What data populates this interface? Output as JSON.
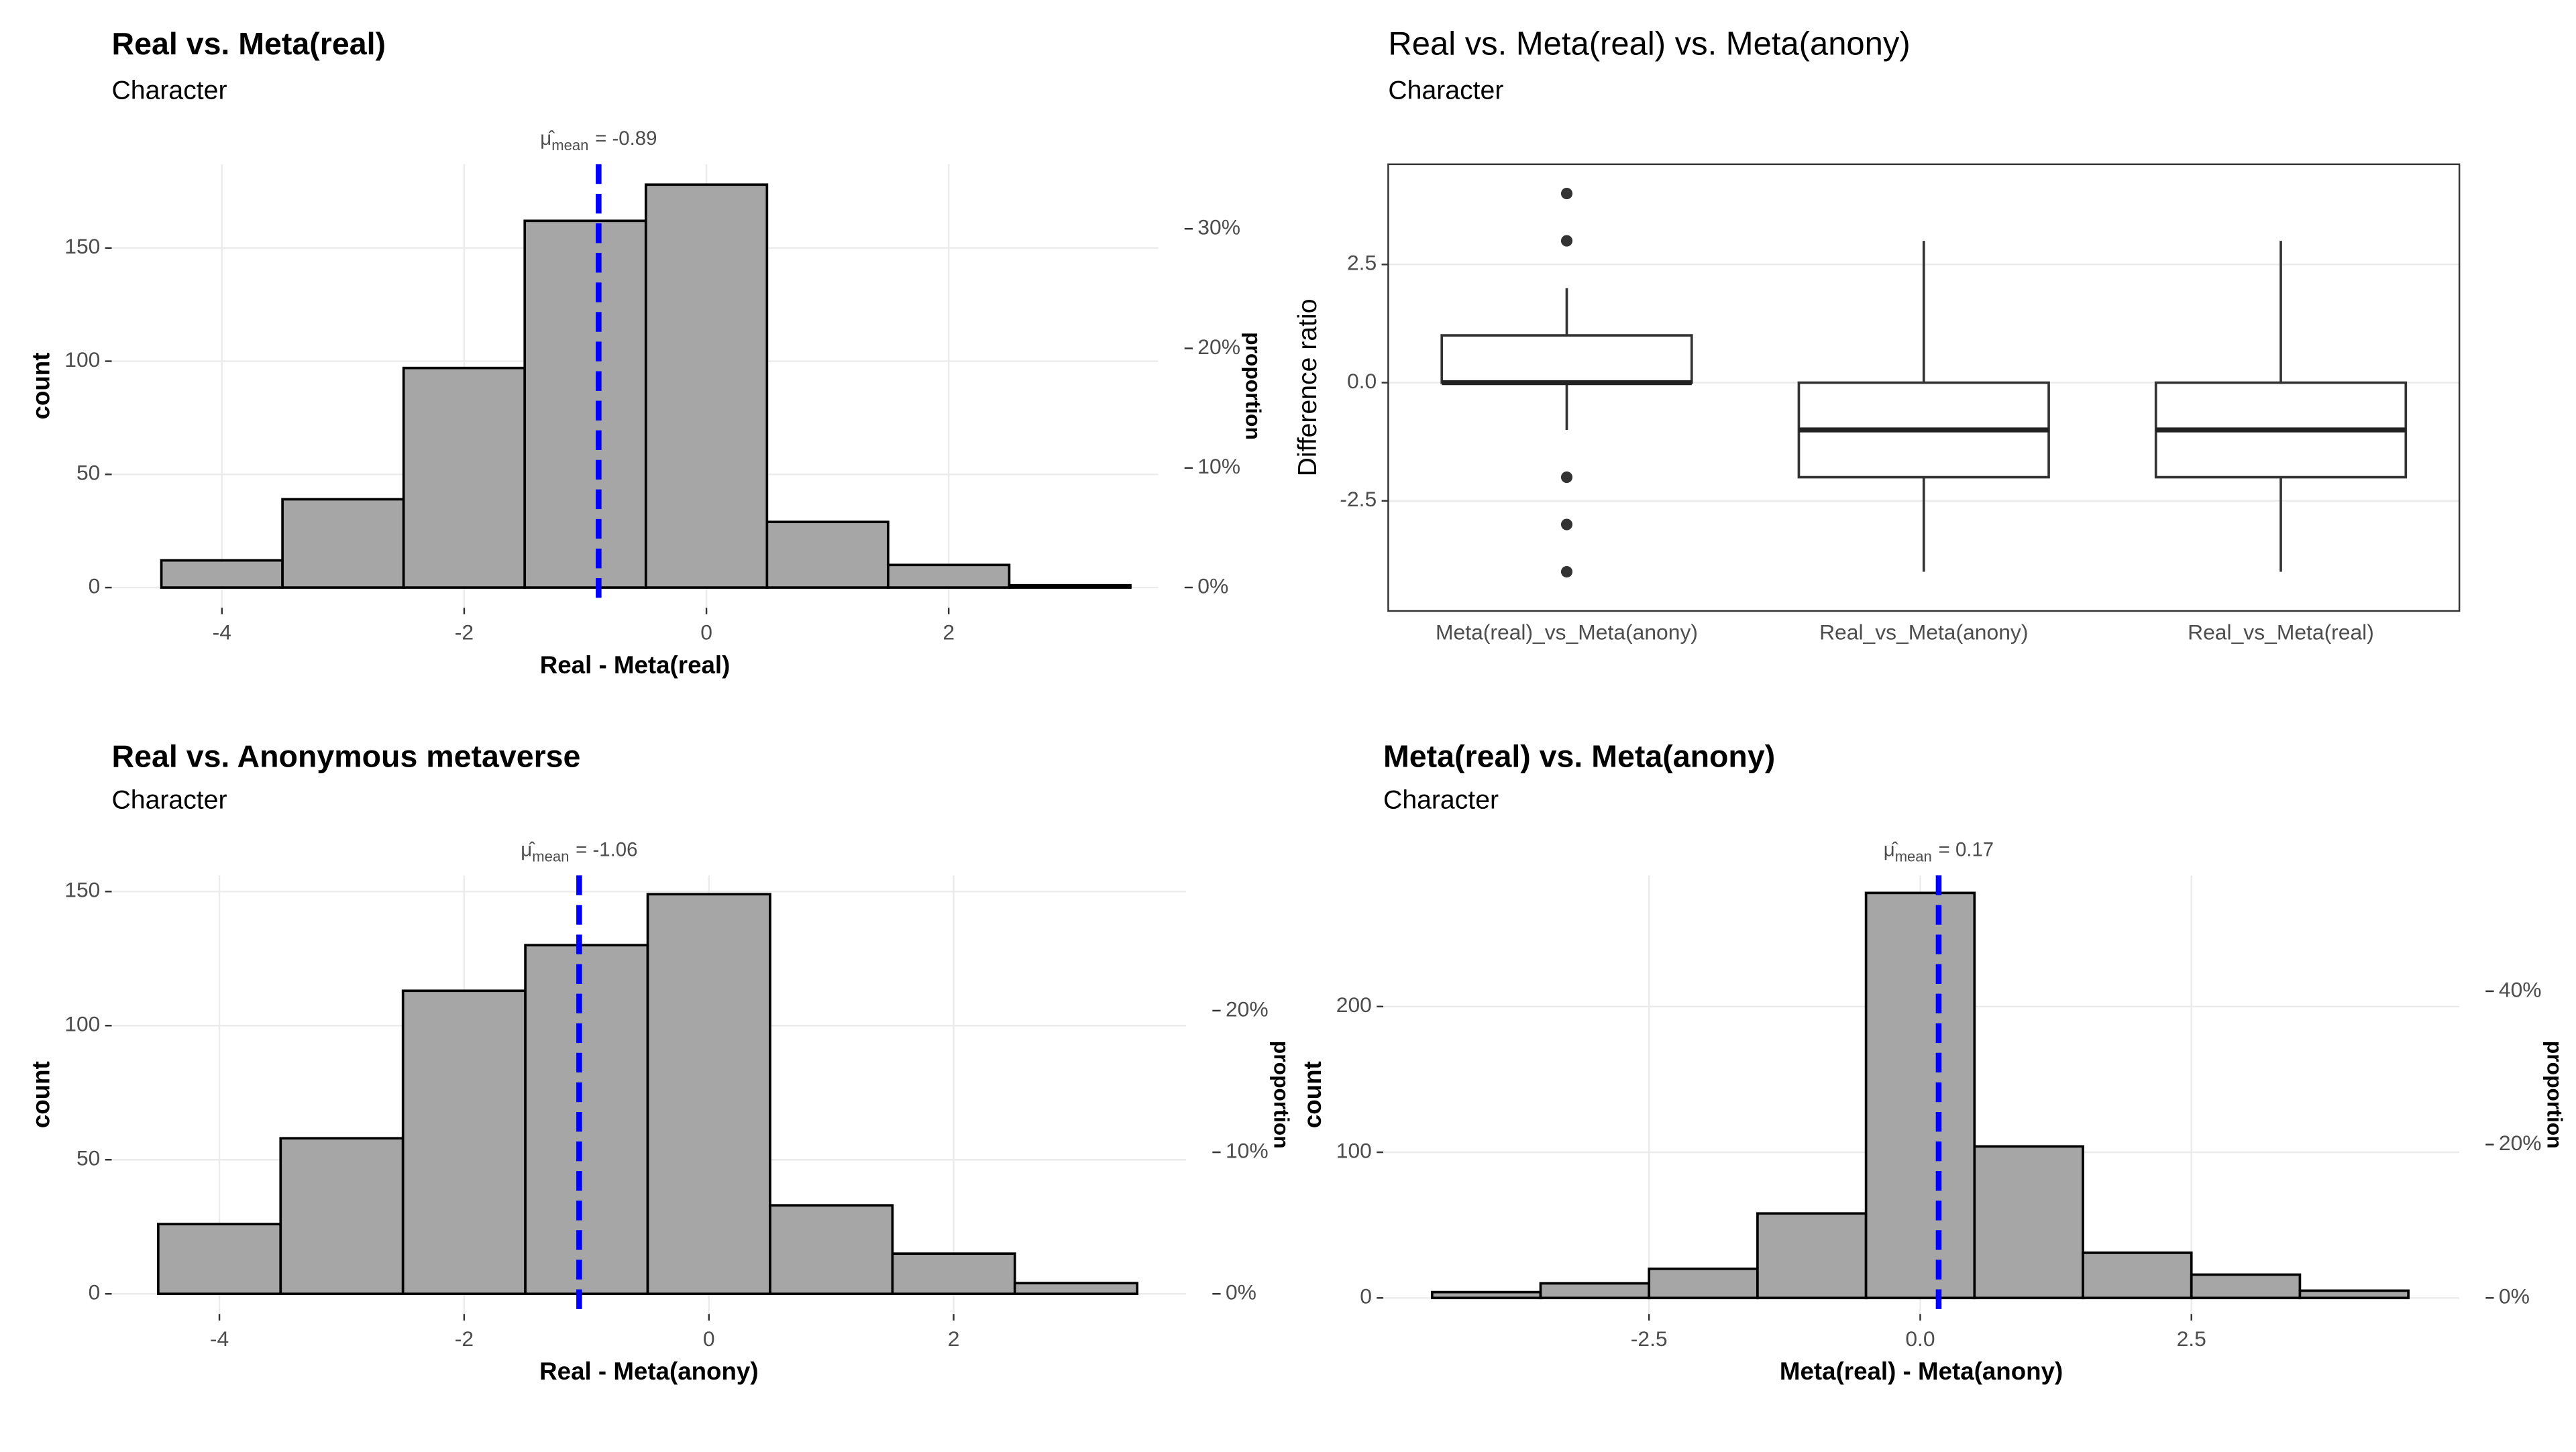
{
  "chart_data": [
    {
      "type": "histogram",
      "title": "Real vs. Meta(real)",
      "subtitle": "Character",
      "xlabel": "Real - Meta(real)",
      "ylabel": "count",
      "y2label": "proportion",
      "bins": [
        -4.5,
        -3.5,
        -2.5,
        -1.5,
        -0.5,
        0.5,
        1.5,
        2.5,
        3.5
      ],
      "values": [
        12,
        39,
        97,
        162,
        178,
        29,
        10,
        1
      ],
      "color": "#a6a6a6",
      "xlim": [
        -4.91,
        3.73
      ],
      "xticks": [
        -4,
        -2,
        0,
        2
      ],
      "ylim": [
        -8.9,
        187
      ],
      "yticks": [
        0,
        50,
        100,
        150
      ],
      "y2lim": [
        -0.0169,
        0.354
      ],
      "y2ticks": [
        {
          "value": 0,
          "label": "0%"
        },
        {
          "value": 0.1,
          "label": "10%"
        },
        {
          "value": 0.2,
          "label": "20%"
        },
        {
          "value": 0.3,
          "label": "30%"
        }
      ],
      "mean_line": {
        "value": -0.89,
        "symbol": "μ̂",
        "subscript": "mean",
        "label": "= -0.89",
        "color": "#0000ff"
      },
      "grid": true
    },
    {
      "type": "box",
      "title": "Real vs. Meta(real) vs. Meta(anony)",
      "subtitle": "Character",
      "ylabel": "Difference ratio",
      "categories": [
        "Meta(real)_vs_Meta(anony)",
        "Real_vs_Meta(anony)",
        "Real_vs_Meta(real)"
      ],
      "boxes": [
        {
          "whislo": -1,
          "q1": 0,
          "median": 0,
          "q3": 1,
          "whishi": 2,
          "outliers": [
            4,
            3,
            -2,
            -3,
            -4
          ]
        },
        {
          "whislo": -4,
          "q1": -2,
          "median": -1,
          "q3": 0,
          "whishi": 3,
          "outliers": []
        },
        {
          "whislo": -4,
          "q1": -2,
          "median": -1,
          "q3": 0,
          "whishi": 3,
          "outliers": []
        }
      ],
      "ylim": [
        -4.83,
        4.62
      ],
      "yticks": [
        -2.5,
        {
          "value": 0,
          "label": "0.0"
        },
        2.5
      ],
      "grid": true
    },
    {
      "type": "histogram",
      "title": "Real vs. Anonymous metaverse",
      "subtitle": "Character",
      "xlabel": "Real - Meta(anony)",
      "ylabel": "count",
      "y2label": "proportion",
      "bins": [
        -4.5,
        -3.5,
        -2.5,
        -1.5,
        -0.5,
        0.5,
        1.5,
        2.5,
        3.5
      ],
      "values": [
        26,
        58,
        113,
        130,
        149,
        33,
        15,
        4
      ],
      "color": "#a6a6a6",
      "xlim": [
        -4.88,
        3.9
      ],
      "xticks": [
        -4,
        -2,
        0,
        2
      ],
      "ylim": [
        -7.5,
        156
      ],
      "yticks": [
        0,
        50,
        100,
        150
      ],
      "y2lim": [
        -0.0142,
        0.2955
      ],
      "y2ticks": [
        {
          "value": 0,
          "label": "0%"
        },
        {
          "value": 0.1,
          "label": "10%"
        },
        {
          "value": 0.2,
          "label": "20%"
        }
      ],
      "mean_line": {
        "value": -1.06,
        "symbol": "μ̂",
        "subscript": "mean",
        "label": "= -1.06",
        "color": "#0000ff"
      },
      "grid": true
    },
    {
      "type": "histogram",
      "title": "Meta(real) vs. Meta(anony)",
      "subtitle": "Character",
      "xlabel": "Meta(real) - Meta(anony)",
      "ylabel": "count",
      "y2label": "proportion",
      "bins": [
        -4.5,
        -3.5,
        -2.5,
        -1.5,
        -0.5,
        0.5,
        1.5,
        2.5,
        3.5,
        4.5
      ],
      "values": [
        4,
        10,
        20,
        58,
        278,
        104,
        31,
        16,
        5
      ],
      "color": "#a6a6a6",
      "xlim": [
        -4.95,
        4.97
      ],
      "xticks": [
        -2.5,
        {
          "value": 0,
          "label": "0.0"
        },
        2.5
      ],
      "ylim": [
        -11,
        290
      ],
      "yticks": [
        0,
        100,
        200
      ],
      "y2lim": [
        -0.0209,
        0.551
      ],
      "y2ticks": [
        {
          "value": 0,
          "label": "0%"
        },
        {
          "value": 0.2,
          "label": "20%"
        },
        {
          "value": 0.4,
          "label": "40%"
        }
      ],
      "mean_line": {
        "value": 0.17,
        "symbol": "μ̂",
        "subscript": "mean",
        "label": "= 0.17",
        "color": "#0000ff"
      },
      "grid": true
    }
  ]
}
